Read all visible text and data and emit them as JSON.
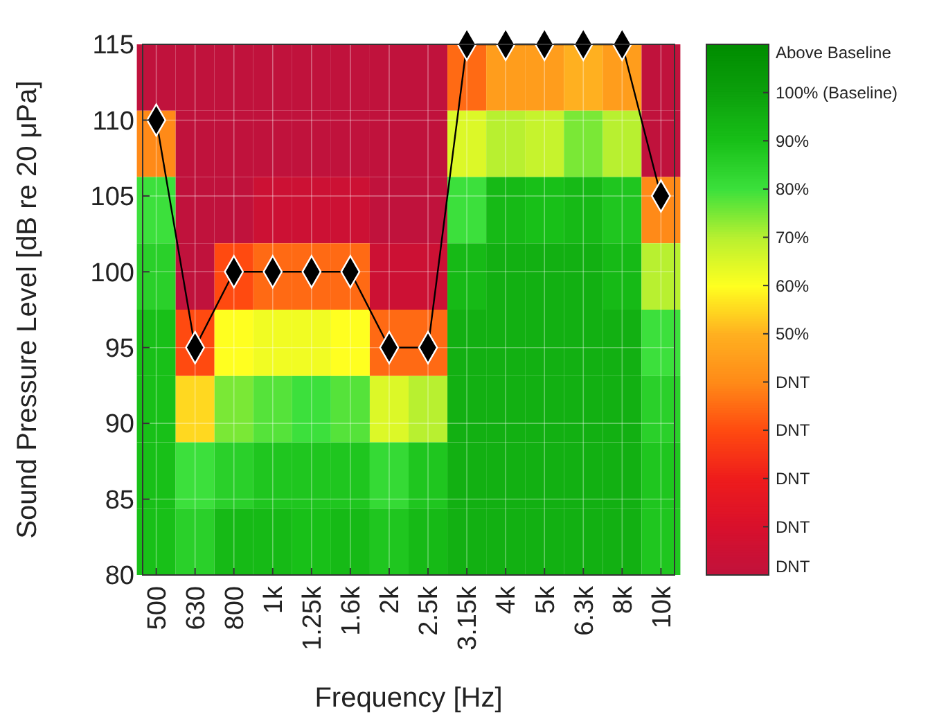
{
  "chart_data": {
    "type": "heatmap",
    "xlabel": "Frequency [Hz]",
    "ylabel": "Sound Pressure Level [dB re 20 μPa]",
    "categories": [
      "500",
      "630",
      "800",
      "1k",
      "1.25k",
      "1.6k",
      "2k",
      "2.5k",
      "3.15k",
      "4k",
      "5k",
      "6.3k",
      "8k",
      "10k"
    ],
    "ylim": [
      80,
      115
    ],
    "yticks": [
      80,
      85,
      90,
      95,
      100,
      105,
      110,
      115
    ],
    "cells": [
      [
        0,
        0,
        0,
        0,
        0,
        0,
        0,
        0,
        35,
        45,
        45,
        50,
        45,
        0
      ],
      [
        40,
        0,
        0,
        0,
        0,
        0,
        0,
        0,
        65,
        70,
        68,
        75,
        70,
        0
      ],
      [
        80,
        0,
        0,
        5,
        5,
        5,
        0,
        0,
        80,
        92,
        90,
        92,
        88,
        40
      ],
      [
        85,
        0,
        30,
        35,
        35,
        35,
        5,
        5,
        92,
        95,
        95,
        95,
        92,
        70
      ],
      [
        90,
        30,
        60,
        62,
        62,
        60,
        35,
        35,
        95,
        95,
        95,
        95,
        95,
        80
      ],
      [
        90,
        55,
        75,
        78,
        80,
        78,
        65,
        70,
        95,
        95,
        95,
        95,
        95,
        85
      ],
      [
        90,
        80,
        85,
        88,
        88,
        88,
        82,
        88,
        95,
        95,
        95,
        95,
        95,
        88
      ],
      [
        90,
        85,
        92,
        92,
        90,
        92,
        88,
        92,
        95,
        95,
        95,
        95,
        95,
        88
      ]
    ],
    "clim": [
      0,
      110
    ],
    "cticks": [
      {
        "value": 0,
        "label": "DNT"
      },
      {
        "value": 10,
        "label": "DNT"
      },
      {
        "value": 20,
        "label": "DNT"
      },
      {
        "value": 30,
        "label": "DNT"
      },
      {
        "value": 40,
        "label": "DNT"
      },
      {
        "value": 50,
        "label": "50%"
      },
      {
        "value": 60,
        "label": "60%"
      },
      {
        "value": 70,
        "label": "70%"
      },
      {
        "value": 80,
        "label": "80%"
      },
      {
        "value": 90,
        "label": "90%"
      },
      {
        "value": 100,
        "label": "100% (Baseline)"
      },
      {
        "value": 110,
        "label": "Above Baseline"
      }
    ],
    "grid": true,
    "series": [
      {
        "type": "line",
        "color": "#000000",
        "values": [
          110,
          95,
          100,
          100,
          100,
          100,
          95,
          95,
          115,
          115,
          115,
          115,
          115,
          105
        ]
      }
    ],
    "marker": "diamond"
  }
}
